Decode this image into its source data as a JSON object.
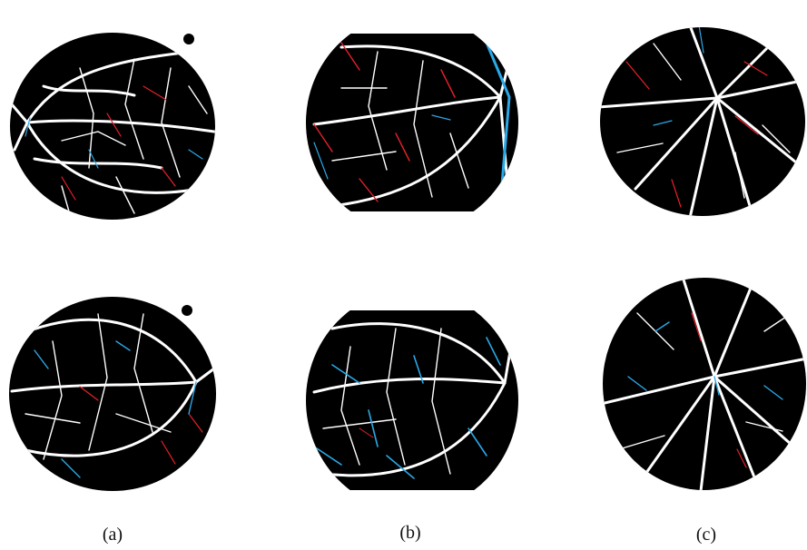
{
  "figure": {
    "captions": [
      "(a)",
      "(b)",
      "(c)"
    ],
    "panels": [
      {
        "column": "a",
        "row": "top",
        "shape": "circle"
      },
      {
        "column": "b",
        "row": "top",
        "shape": "cropped-circle"
      },
      {
        "column": "c",
        "row": "top",
        "shape": "circle"
      },
      {
        "column": "a",
        "row": "bottom",
        "shape": "circle"
      },
      {
        "column": "b",
        "row": "bottom",
        "shape": "cropped-circle"
      },
      {
        "column": "c",
        "row": "bottom",
        "shape": "circle"
      }
    ],
    "colors": {
      "background": "#000000",
      "vessel_agree": "#ffffff",
      "false_positive": "#e8202a",
      "false_negative": "#2aa9e8"
    }
  }
}
